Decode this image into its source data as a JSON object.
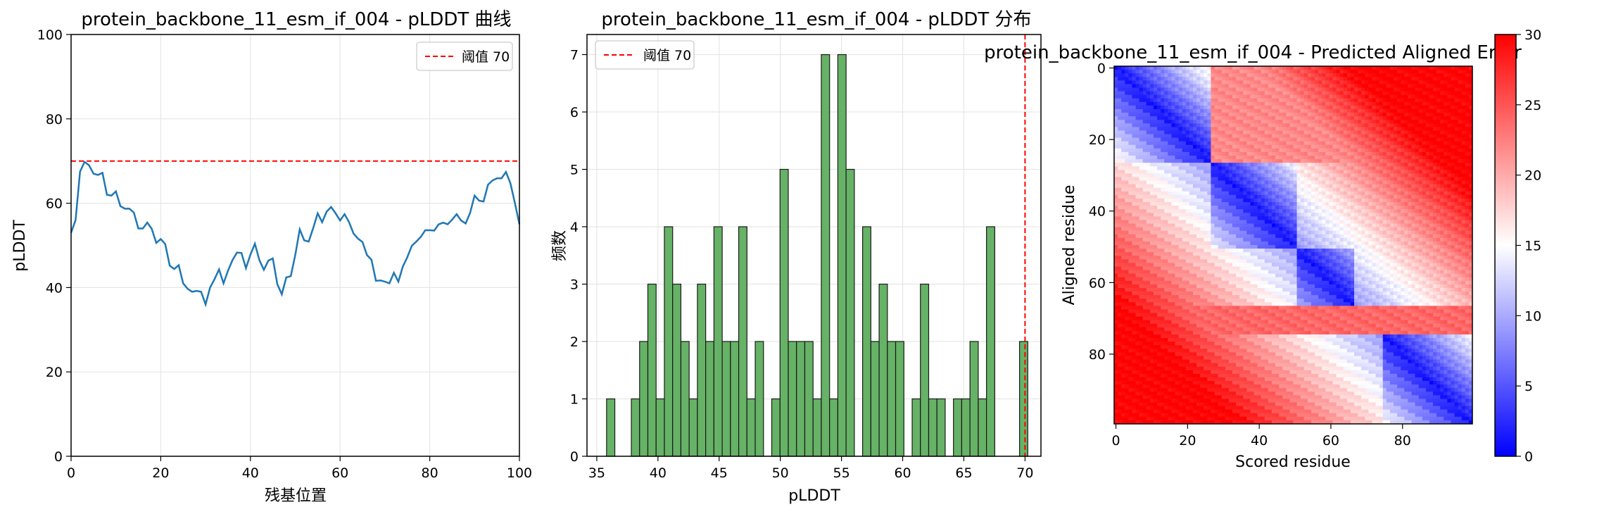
{
  "chart_data": [
    {
      "type": "line",
      "title": "protein_backbone_11_esm_if_004 - pLDDT 曲线",
      "xlabel": "残基位置",
      "ylabel": "pLDDT",
      "xlim": [
        0,
        100
      ],
      "ylim": [
        0,
        100
      ],
      "xticks": [
        "0",
        "20",
        "40",
        "60",
        "80",
        "100"
      ],
      "yticks": [
        "0",
        "20",
        "40",
        "60",
        "80",
        "100"
      ],
      "grid": true,
      "legend": {
        "placement": "upper-right",
        "entries": [
          "阈值 70"
        ]
      },
      "threshold": {
        "y": 70,
        "label": "阈值 70",
        "color": "#ff0000"
      },
      "series": [
        {
          "color": "#1f77b4",
          "x": [
            0,
            1,
            2,
            3,
            4,
            5,
            6,
            7,
            8,
            9,
            10,
            11,
            12,
            13,
            14,
            15,
            16,
            17,
            18,
            19,
            20,
            21,
            22,
            23,
            24,
            25,
            26,
            27,
            28,
            29,
            30,
            31,
            32,
            33,
            34,
            35,
            36,
            37,
            38,
            39,
            40,
            41,
            42,
            43,
            44,
            45,
            46,
            47,
            48,
            49,
            50,
            51,
            52,
            53,
            54,
            55,
            56,
            57,
            58,
            59,
            60,
            61,
            62,
            63,
            64,
            65,
            66,
            67,
            68,
            69,
            70,
            71,
            72,
            73,
            74,
            75,
            76,
            77,
            78,
            79,
            80,
            81,
            82,
            83,
            84,
            85,
            86,
            87,
            88,
            89,
            90,
            91,
            92,
            93,
            94,
            95,
            96,
            97,
            98,
            99,
            100
          ],
          "y": [
            53,
            56,
            67.5,
            69.8,
            69,
            67,
            66.7,
            67.2,
            62,
            61.8,
            62.8,
            59.3,
            58.7,
            58.7,
            57.8,
            54,
            54,
            55.4,
            53.9,
            50.6,
            51.5,
            50.3,
            45.2,
            44.4,
            45.3,
            41,
            39.7,
            39,
            39.2,
            39,
            36,
            40,
            42,
            44.3,
            41,
            44,
            46.5,
            48.3,
            48.2,
            44.6,
            47.8,
            50.4,
            46.5,
            44.2,
            46.4,
            46.9,
            40.8,
            38.4,
            42.4,
            42.7,
            47.7,
            53.8,
            51.2,
            50.9,
            54.1,
            57.6,
            55.5,
            58,
            59.1,
            57.6,
            55.9,
            57.4,
            55.5,
            52.8,
            51.6,
            50.8,
            47.7,
            46.6,
            41.6,
            41.7,
            41.4,
            41,
            43.5,
            41.4,
            45,
            47.2,
            49.9,
            50.9,
            52,
            53.6,
            53.6,
            53.5,
            55,
            55.4,
            55,
            56.1,
            57.4,
            55.9,
            55.2,
            57.7,
            61.8,
            60.6,
            60.4,
            64.4,
            65.4,
            65.9,
            65.9,
            67.4,
            64.7,
            60,
            55
          ]
        }
      ]
    },
    {
      "type": "bar",
      "title": "protein_backbone_11_esm_if_004 - pLDDT 分布",
      "xlabel": "pLDDT",
      "ylabel": "频数",
      "xlim": [
        34.2,
        71.3
      ],
      "ylim": [
        0,
        7.35
      ],
      "xticks": [
        "35",
        "40",
        "45",
        "50",
        "55",
        "60",
        "65",
        "70"
      ],
      "yticks": [
        "0",
        "1",
        "2",
        "3",
        "4",
        "5",
        "6",
        "7"
      ],
      "grid": true,
      "legend": {
        "placement": "upper-left",
        "entries": [
          "阈值 70"
        ]
      },
      "threshold": {
        "x": 70,
        "label": "阈值 70",
        "color": "#ff0000"
      },
      "bar_color": "#66b266",
      "bin_edges_start": 35.8,
      "bin_width": 0.675,
      "counts": [
        1,
        0,
        0,
        1,
        2,
        3,
        1,
        4,
        3,
        2,
        1,
        3,
        2,
        4,
        2,
        2,
        4,
        1,
        2,
        0,
        1,
        5,
        2,
        2,
        2,
        1,
        7,
        1,
        7,
        5,
        0,
        4,
        2,
        3,
        2,
        2,
        0,
        1,
        3,
        1,
        1,
        0,
        1,
        1,
        2,
        1,
        4,
        0,
        0,
        0,
        2
      ]
    },
    {
      "type": "heatmap",
      "title": "protein_backbone_11_esm_if_004 - Predicted Aligned Error",
      "xlabel": "Scored residue",
      "ylabel": "Aligned residue",
      "xticks": [
        "0",
        "20",
        "40",
        "60",
        "80"
      ],
      "yticks": [
        "0",
        "20",
        "40",
        "60",
        "80"
      ],
      "size": 100,
      "colormap": "bwr",
      "vmin": 0,
      "vmax": 30,
      "colorbar_ticks": [
        "0",
        "5",
        "10",
        "15",
        "20",
        "25",
        "30"
      ]
    }
  ]
}
